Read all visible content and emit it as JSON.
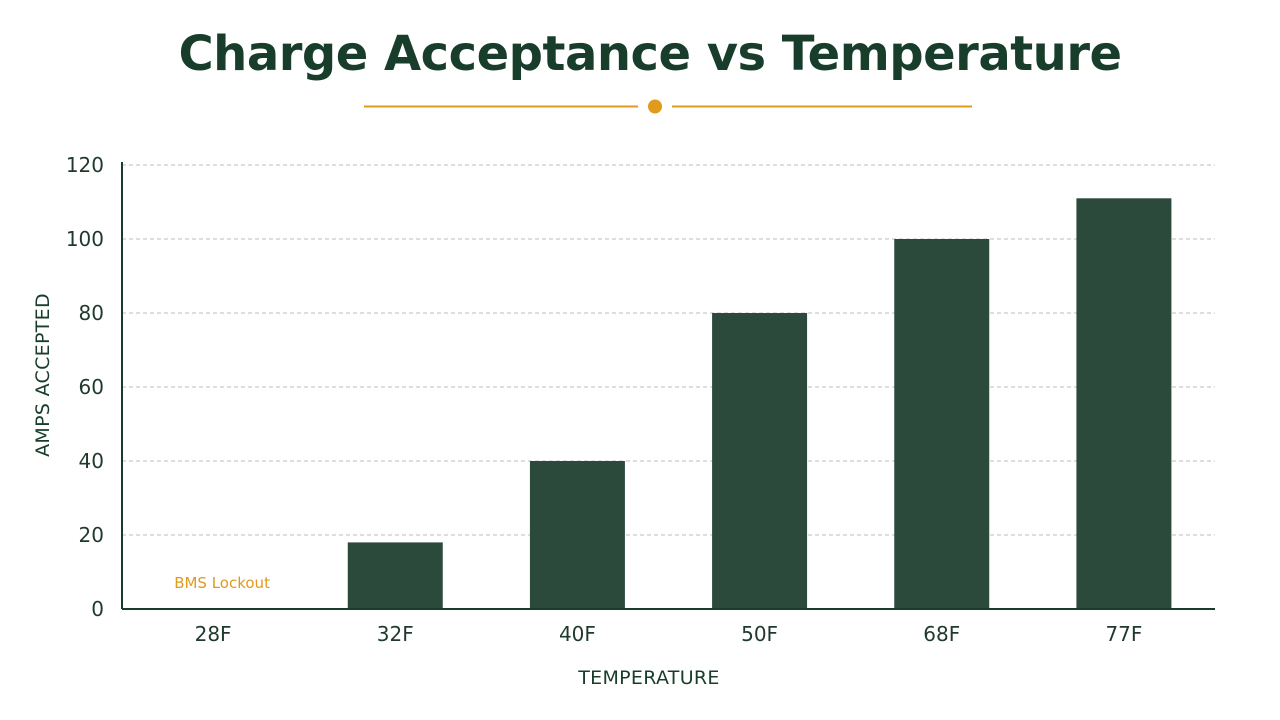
{
  "colors": {
    "bar": "#2b4a3c",
    "title": "#183d2b",
    "accent": "#e09a1c",
    "grid": "#bdbdbd",
    "axis": "#183d2b"
  },
  "chart_data": {
    "type": "bar",
    "title": "Charge Acceptance vs Temperature",
    "xlabel": "TEMPERATURE",
    "ylabel": "AMPS ACCEPTED",
    "categories": [
      "28F",
      "32F",
      "40F",
      "50F",
      "68F",
      "77F"
    ],
    "values": [
      0,
      18,
      40,
      80,
      100,
      111
    ],
    "ylim": [
      0,
      120
    ],
    "yticks": [
      0,
      20,
      40,
      60,
      80,
      100,
      120
    ],
    "grid": true,
    "annotations": [
      {
        "category": "28F",
        "text": "BMS Lockout"
      }
    ]
  }
}
